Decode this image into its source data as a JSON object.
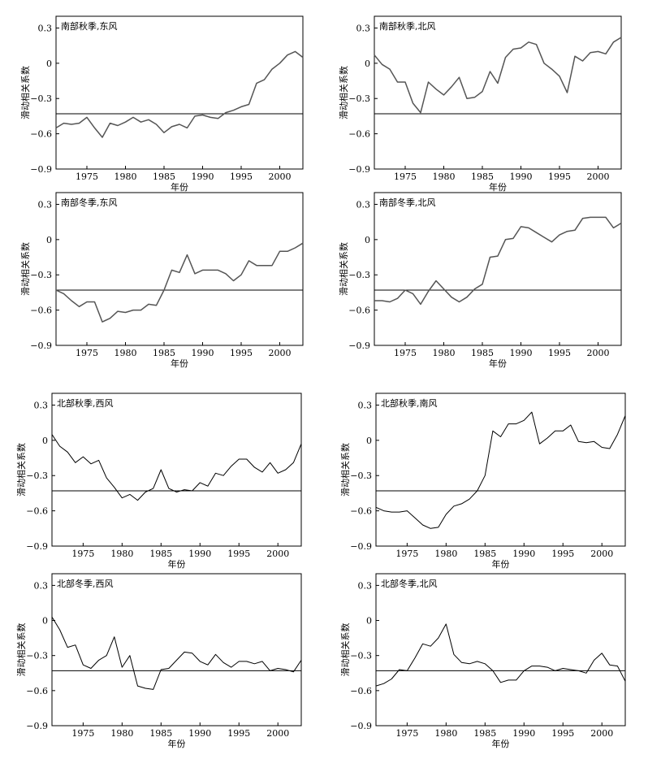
{
  "chart_data": [
    {
      "type": "line",
      "title": "南部秋季,东风",
      "xlabel": "年份",
      "ylabel": "滑动相关系数",
      "xlim": [
        1971,
        2003
      ],
      "ylim": [
        -0.9,
        0.4
      ],
      "xticks": [
        "1975",
        "1980",
        "1985",
        "1990",
        "1995",
        "2000"
      ],
      "yticks": [
        "0.3",
        "0",
        "−0.3",
        "−0.6",
        "−0.9"
      ],
      "threshold": -0.43,
      "x": [
        1971,
        1972,
        1973,
        1974,
        1975,
        1976,
        1977,
        1978,
        1979,
        1980,
        1981,
        1982,
        1983,
        1984,
        1985,
        1986,
        1987,
        1988,
        1989,
        1990,
        1991,
        1992,
        1993,
        1994,
        1995,
        1996,
        1997,
        1998,
        1999,
        2000,
        2001,
        2002,
        2003
      ],
      "series": [
        {
          "values": [
            -0.55,
            -0.51,
            -0.52,
            -0.51,
            -0.46,
            -0.55,
            -0.63,
            -0.51,
            -0.53,
            -0.5,
            -0.46,
            -0.5,
            -0.48,
            -0.52,
            -0.59,
            -0.54,
            -0.52,
            -0.55,
            -0.45,
            -0.44,
            -0.46,
            -0.47,
            -0.42,
            -0.4,
            -0.37,
            -0.35,
            -0.17,
            -0.14,
            -0.05,
            0,
            0.07,
            0.1,
            0.05
          ]
        }
      ]
    },
    {
      "type": "line",
      "title": "南部秋季,北风",
      "xlabel": "年份",
      "ylabel": "滑动相关系数",
      "xlim": [
        1971,
        2003
      ],
      "ylim": [
        -0.9,
        0.4
      ],
      "xticks": [
        "1975",
        "1980",
        "1985",
        "1990",
        "1995",
        "2000"
      ],
      "yticks": [
        "0.3",
        "0",
        "−0.3",
        "−0.6",
        "−0.9"
      ],
      "threshold": -0.43,
      "x": [
        1971,
        1972,
        1973,
        1974,
        1975,
        1976,
        1977,
        1978,
        1979,
        1980,
        1981,
        1982,
        1983,
        1984,
        1985,
        1986,
        1987,
        1988,
        1989,
        1990,
        1991,
        1992,
        1993,
        1994,
        1995,
        1996,
        1997,
        1998,
        1999,
        2000,
        2001,
        2002,
        2003
      ],
      "series": [
        {
          "values": [
            0.07,
            -0.01,
            -0.05,
            -0.16,
            -0.16,
            -0.34,
            -0.42,
            -0.16,
            -0.22,
            -0.27,
            -0.2,
            -0.12,
            -0.3,
            -0.29,
            -0.24,
            -0.07,
            -0.17,
            0.05,
            0.12,
            0.13,
            0.18,
            0.16,
            0,
            -0.05,
            -0.11,
            -0.25,
            0.06,
            0.02,
            0.09,
            0.1,
            0.08,
            0.18,
            0.22
          ]
        }
      ]
    },
    {
      "type": "line",
      "title": "南部冬季,东风",
      "xlabel": "年份",
      "ylabel": "滑动相关系数",
      "xlim": [
        1971,
        2003
      ],
      "ylim": [
        -0.9,
        0.4
      ],
      "xticks": [
        "1975",
        "1980",
        "1985",
        "1990",
        "1995",
        "2000"
      ],
      "yticks": [
        "0.3",
        "0",
        "−0.3",
        "−0.6",
        "−0.9"
      ],
      "threshold": -0.43,
      "x": [
        1971,
        1972,
        1973,
        1974,
        1975,
        1976,
        1977,
        1978,
        1979,
        1980,
        1981,
        1982,
        1983,
        1984,
        1985,
        1986,
        1987,
        1988,
        1989,
        1990,
        1991,
        1992,
        1993,
        1994,
        1995,
        1996,
        1997,
        1998,
        1999,
        2000,
        2001,
        2002,
        2003
      ],
      "series": [
        {
          "values": [
            -0.43,
            -0.46,
            -0.52,
            -0.57,
            -0.53,
            -0.53,
            -0.7,
            -0.67,
            -0.61,
            -0.62,
            -0.6,
            -0.6,
            -0.55,
            -0.56,
            -0.43,
            -0.26,
            -0.28,
            -0.13,
            -0.29,
            -0.26,
            -0.26,
            -0.26,
            -0.29,
            -0.35,
            -0.3,
            -0.18,
            -0.22,
            -0.22,
            -0.22,
            -0.1,
            -0.1,
            -0.07,
            -0.03
          ]
        }
      ]
    },
    {
      "type": "line",
      "title": "南部冬季,北风",
      "xlabel": "年份",
      "ylabel": "滑动相关系数",
      "xlim": [
        1971,
        2003
      ],
      "ylim": [
        -0.9,
        0.4
      ],
      "xticks": [
        "1975",
        "1980",
        "1985",
        "1990",
        "1995",
        "2000"
      ],
      "yticks": [
        "0.3",
        "0",
        "−0.3",
        "−0.6",
        "−0.9"
      ],
      "threshold": -0.43,
      "x": [
        1971,
        1972,
        1973,
        1974,
        1975,
        1976,
        1977,
        1978,
        1979,
        1980,
        1981,
        1982,
        1983,
        1984,
        1985,
        1986,
        1987,
        1988,
        1989,
        1990,
        1991,
        1992,
        1993,
        1994,
        1995,
        1996,
        1997,
        1998,
        1999,
        2000,
        2001,
        2002,
        2003
      ],
      "series": [
        {
          "values": [
            -0.52,
            -0.52,
            -0.53,
            -0.5,
            -0.43,
            -0.46,
            -0.55,
            -0.44,
            -0.35,
            -0.42,
            -0.49,
            -0.53,
            -0.49,
            -0.42,
            -0.38,
            -0.15,
            -0.14,
            0,
            0.01,
            0.11,
            0.1,
            0.06,
            0.02,
            -0.02,
            0.04,
            0.07,
            0.08,
            0.18,
            0.19,
            0.19,
            0.19,
            0.1,
            0.14
          ]
        }
      ]
    },
    {
      "type": "line",
      "title": "北部秋季,西风",
      "xlabel": "年份",
      "ylabel": "滑动相关系数",
      "xlim": [
        1971,
        2003
      ],
      "ylim": [
        -0.9,
        0.4
      ],
      "xticks": [
        "1975",
        "1980",
        "1985",
        "1990",
        "1995",
        "2000"
      ],
      "yticks": [
        "0.3",
        "0",
        "−0.3",
        "−0.6",
        "−0.9"
      ],
      "threshold": -0.43,
      "x": [
        1971,
        1972,
        1973,
        1974,
        1975,
        1976,
        1977,
        1978,
        1979,
        1980,
        1981,
        1982,
        1983,
        1984,
        1985,
        1986,
        1987,
        1988,
        1989,
        1990,
        1991,
        1992,
        1993,
        1994,
        1995,
        1996,
        1997,
        1998,
        1999,
        2000,
        2001,
        2002,
        2003
      ],
      "series": [
        {
          "values": [
            0.05,
            -0.05,
            -0.1,
            -0.19,
            -0.14,
            -0.2,
            -0.17,
            -0.32,
            -0.4,
            -0.49,
            -0.46,
            -0.51,
            -0.44,
            -0.41,
            -0.25,
            -0.41,
            -0.44,
            -0.42,
            -0.43,
            -0.36,
            -0.39,
            -0.28,
            -0.3,
            -0.22,
            -0.16,
            -0.16,
            -0.23,
            -0.27,
            -0.19,
            -0.28,
            -0.25,
            -0.19,
            -0.03
          ]
        }
      ]
    },
    {
      "type": "line",
      "title": "北部秋季,南风",
      "xlabel": "年份",
      "ylabel": "滑动相关系数",
      "xlim": [
        1971,
        2003
      ],
      "ylim": [
        -0.9,
        0.4
      ],
      "xticks": [
        "1975",
        "1980",
        "1985",
        "1990",
        "1995",
        "2000"
      ],
      "yticks": [
        "0.3",
        "0",
        "−0.3",
        "−0.6",
        "−0.9"
      ],
      "threshold": -0.43,
      "x": [
        1971,
        1972,
        1973,
        1974,
        1975,
        1976,
        1977,
        1978,
        1979,
        1980,
        1981,
        1982,
        1983,
        1984,
        1985,
        1986,
        1987,
        1988,
        1989,
        1990,
        1991,
        1992,
        1993,
        1994,
        1995,
        1996,
        1997,
        1998,
        1999,
        2000,
        2001,
        2002,
        2003
      ],
      "series": [
        {
          "values": [
            -0.57,
            -0.6,
            -0.61,
            -0.61,
            -0.6,
            -0.66,
            -0.72,
            -0.75,
            -0.74,
            -0.63,
            -0.56,
            -0.54,
            -0.5,
            -0.43,
            -0.3,
            0.08,
            0.03,
            0.14,
            0.14,
            0.17,
            0.24,
            -0.03,
            0.02,
            0.08,
            0.08,
            0.13,
            -0.01,
            -0.02,
            -0.01,
            -0.06,
            -0.07,
            0.05,
            0.21
          ]
        }
      ]
    },
    {
      "type": "line",
      "title": "北部冬季,西风",
      "xlabel": "年份",
      "ylabel": "滑动相关系数",
      "xlim": [
        1971,
        2003
      ],
      "ylim": [
        -0.9,
        0.4
      ],
      "xticks": [
        "1975",
        "1980",
        "1985",
        "1990",
        "1995",
        "2000"
      ],
      "yticks": [
        "0.3",
        "0",
        "−0.3",
        "−0.6",
        "−0.9"
      ],
      "threshold": -0.43,
      "x": [
        1971,
        1972,
        1973,
        1974,
        1975,
        1976,
        1977,
        1978,
        1979,
        1980,
        1981,
        1982,
        1983,
        1984,
        1985,
        1986,
        1987,
        1988,
        1989,
        1990,
        1991,
        1992,
        1993,
        1994,
        1995,
        1996,
        1997,
        1998,
        1999,
        2000,
        2001,
        2002,
        2003
      ],
      "series": [
        {
          "values": [
            0.03,
            -0.08,
            -0.23,
            -0.21,
            -0.38,
            -0.41,
            -0.34,
            -0.3,
            -0.14,
            -0.4,
            -0.3,
            -0.56,
            -0.58,
            -0.59,
            -0.42,
            -0.41,
            -0.34,
            -0.27,
            -0.28,
            -0.35,
            -0.38,
            -0.29,
            -0.36,
            -0.4,
            -0.35,
            -0.35,
            -0.37,
            -0.35,
            -0.43,
            -0.41,
            -0.42,
            -0.44,
            -0.34
          ]
        }
      ]
    },
    {
      "type": "line",
      "title": "北部冬季,北风",
      "xlabel": "年份",
      "ylabel": "滑动相关系数",
      "xlim": [
        1971,
        2003
      ],
      "ylim": [
        -0.9,
        0.4
      ],
      "xticks": [
        "1975",
        "1980",
        "1985",
        "1990",
        "1995",
        "2000"
      ],
      "yticks": [
        "0.3",
        "0",
        "−0.3",
        "−0.6",
        "−0.9"
      ],
      "threshold": -0.43,
      "x": [
        1971,
        1972,
        1973,
        1974,
        1975,
        1976,
        1977,
        1978,
        1979,
        1980,
        1981,
        1982,
        1983,
        1984,
        1985,
        1986,
        1987,
        1988,
        1989,
        1990,
        1991,
        1992,
        1993,
        1994,
        1995,
        1996,
        1997,
        1998,
        1999,
        2000,
        2001,
        2002,
        2003
      ],
      "series": [
        {
          "values": [
            -0.56,
            -0.54,
            -0.5,
            -0.42,
            -0.43,
            -0.32,
            -0.2,
            -0.22,
            -0.15,
            -0.03,
            -0.29,
            -0.36,
            -0.37,
            -0.35,
            -0.37,
            -0.43,
            -0.53,
            -0.51,
            -0.51,
            -0.43,
            -0.39,
            -0.39,
            -0.4,
            -0.43,
            -0.41,
            -0.42,
            -0.43,
            -0.45,
            -0.34,
            -0.28,
            -0.38,
            -0.39,
            -0.52
          ]
        }
      ]
    }
  ]
}
